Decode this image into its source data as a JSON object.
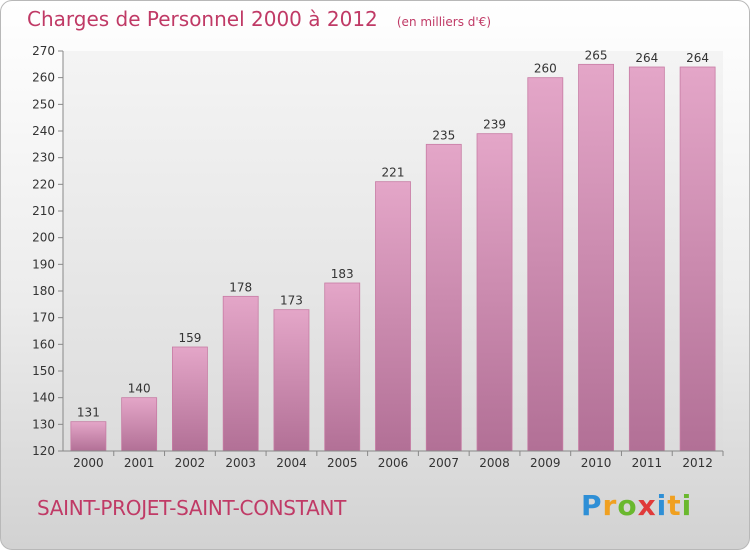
{
  "chart_data": {
    "type": "bar",
    "title": "Charges de Personnel 2000 à 2012",
    "subtitle": "(en milliers d'€)",
    "categories": [
      "2000",
      "2001",
      "2002",
      "2003",
      "2004",
      "2005",
      "2006",
      "2007",
      "2008",
      "2009",
      "2010",
      "2011",
      "2012"
    ],
    "values": [
      131,
      140,
      159,
      178,
      173,
      183,
      221,
      235,
      239,
      260,
      265,
      264,
      264
    ],
    "ylim": [
      120,
      270
    ],
    "yticks": [
      120,
      130,
      140,
      150,
      160,
      170,
      180,
      190,
      200,
      210,
      220,
      230,
      240,
      250,
      260,
      270
    ],
    "grid": false,
    "bar_color": "#d98cb4",
    "xlabel": "",
    "ylabel": ""
  },
  "location": "SAINT-PROJET-SAINT-CONSTANT",
  "logo": {
    "letters": [
      "P",
      "r",
      "o",
      "x",
      "i",
      "t",
      "i"
    ],
    "colors": [
      "#2e8fd6",
      "#f0a020",
      "#6ab82e",
      "#e03a3a",
      "#2e8fd6",
      "#f0a020",
      "#6ab82e"
    ]
  }
}
